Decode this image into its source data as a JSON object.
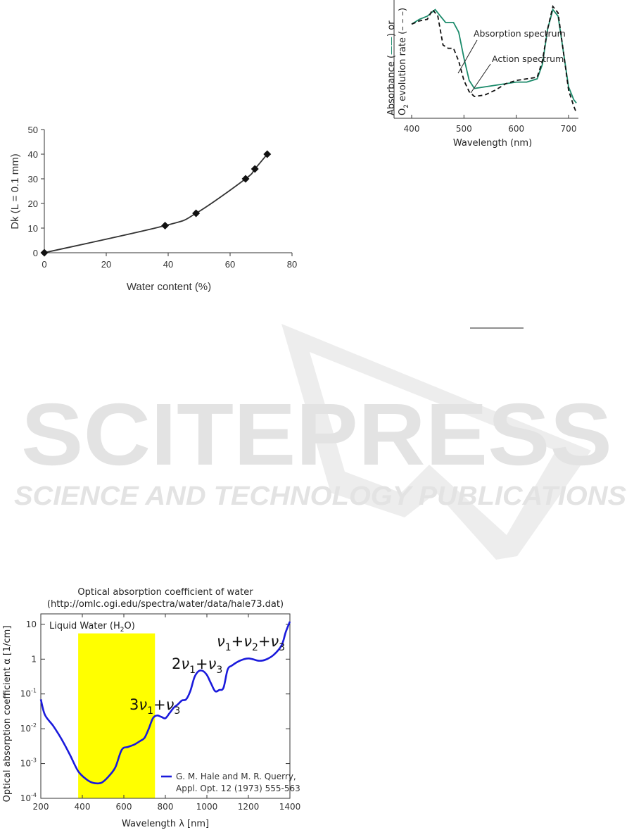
{
  "watermark": {
    "brand": "SCITEPRESS",
    "tagline": "SCIENCE AND TECHNOLOGY PUBLICATIONS",
    "color": "#e3e3e3"
  },
  "chart_data": [
    {
      "type": "line",
      "title": "",
      "xlabel": "Water content (%)",
      "ylabel": "Dk (L = 0.1 mm)",
      "xlim": [
        0,
        80
      ],
      "ylim": [
        0,
        50
      ],
      "xticks": [
        "0",
        "20",
        "40",
        "60",
        "80"
      ],
      "yticks": [
        "0",
        "10",
        "20",
        "30",
        "40",
        "50"
      ],
      "grid": false,
      "series": [
        {
          "color": "#333333",
          "marker": "diamond",
          "x": [
            0,
            39,
            49,
            65,
            68,
            72
          ],
          "y": [
            0,
            11,
            16,
            30,
            34,
            40
          ]
        }
      ]
    },
    {
      "type": "line",
      "title": "",
      "xlabel": "Wavelength (nm)",
      "ylabel_line1_prefix": "Absorbance (",
      "ylabel_line1_suffix": ") or",
      "ylabel_line2_a": "O",
      "ylabel_line2_sub": "2",
      "ylabel_line2_b": " evolution rate (",
      "ylabel_line2_suffix": ")",
      "xlim": [
        400,
        720
      ],
      "xticks": [
        "400",
        "500",
        "600",
        "700"
      ],
      "grid": false,
      "annotations": [
        "Absorption spectrum",
        "Action spectrum"
      ],
      "series": [
        {
          "name": "Absorption spectrum",
          "color": "#1a8a6a",
          "style": "solid",
          "x": [
            400,
            415,
            430,
            445,
            455,
            465,
            480,
            490,
            500,
            510,
            520,
            540,
            560,
            580,
            600,
            620,
            640,
            650,
            660,
            670,
            680,
            690,
            700,
            710,
            715
          ],
          "y": [
            0.55,
            0.58,
            0.6,
            0.64,
            0.6,
            0.56,
            0.56,
            0.5,
            0.34,
            0.2,
            0.15,
            0.16,
            0.17,
            0.18,
            0.19,
            0.19,
            0.21,
            0.3,
            0.52,
            0.64,
            0.6,
            0.38,
            0.16,
            0.08,
            0.06
          ]
        },
        {
          "name": "Action spectrum",
          "color": "#111111",
          "style": "dashed",
          "x": [
            400,
            415,
            430,
            440,
            450,
            460,
            470,
            480,
            490,
            500,
            510,
            520,
            540,
            560,
            580,
            600,
            620,
            640,
            650,
            660,
            670,
            680,
            690,
            700,
            710,
            715
          ],
          "y": [
            0.55,
            0.57,
            0.58,
            0.64,
            0.6,
            0.42,
            0.4,
            0.4,
            0.32,
            0.2,
            0.13,
            0.1,
            0.11,
            0.14,
            0.18,
            0.2,
            0.21,
            0.22,
            0.32,
            0.52,
            0.66,
            0.62,
            0.38,
            0.14,
            0.04,
            0.0
          ]
        }
      ]
    },
    {
      "type": "line",
      "title": "Optical absorption coefficient of water",
      "subtitle": "(http://omlc.ogi.edu/spectra/water/data/hale73.dat)",
      "xlabel": "Wavelength λ [nm]",
      "ylabel": "Optical absorption coefficient α [1/cm]",
      "scale_y": "log",
      "xlim": [
        200,
        1400
      ],
      "ylim": [
        0.0001,
        20
      ],
      "xticks": [
        "200",
        "400",
        "600",
        "800",
        "1000",
        "1200",
        "1400"
      ],
      "yticks": [
        {
          "v": 0.0001,
          "base": "10",
          "exp": "-4"
        },
        {
          "v": 0.001,
          "base": "10",
          "exp": "-3"
        },
        {
          "v": 0.01,
          "base": "10",
          "exp": "-2"
        },
        {
          "v": 0.1,
          "base": "10",
          "exp": "-1"
        },
        {
          "v": 1,
          "base": "1",
          "exp": ""
        },
        {
          "v": 10,
          "base": "10",
          "exp": ""
        }
      ],
      "grid": false,
      "inset_label": {
        "a": "Liquid Water (H",
        "sub": "2",
        "b": "O)"
      },
      "shaded_band": {
        "x": [
          380,
          750
        ],
        "y_top": 5.5,
        "color": "#ffff00"
      },
      "annotations": [
        {
          "coef": "3",
          "sym": "ν",
          "sub": "1",
          "plus": "+",
          "sym2": "ν",
          "sub2": "3"
        },
        {
          "coef": "2",
          "sym": "ν",
          "sub": "1",
          "plus": "+",
          "sym2": "ν",
          "sub2": "3"
        },
        {
          "terms": [
            "1",
            "2",
            "3"
          ],
          "sym": "ν"
        }
      ],
      "legend": {
        "line1": "G. M. Hale and M. R. Querry,",
        "line2": "Appl. Opt. 12 (1973) 555-563",
        "position": "bottom-right"
      },
      "series": [
        {
          "color": "#1a1adc",
          "x": [
            200,
            220,
            260,
            300,
            340,
            380,
            420,
            450,
            480,
            500,
            530,
            560,
            590,
            620,
            650,
            680,
            700,
            720,
            740,
            760,
            780,
            800,
            820,
            840,
            860,
            880,
            900,
            920,
            940,
            960,
            980,
            1000,
            1020,
            1040,
            1060,
            1080,
            1100,
            1120,
            1150,
            1180,
            1200,
            1220,
            1250,
            1280,
            1320,
            1360,
            1380,
            1400
          ],
          "y": [
            0.07,
            0.025,
            0.012,
            0.005,
            0.0018,
            0.0006,
            0.00035,
            0.00028,
            0.00027,
            0.0003,
            0.00045,
            0.0008,
            0.0025,
            0.003,
            0.0035,
            0.0045,
            0.0055,
            0.01,
            0.02,
            0.024,
            0.022,
            0.02,
            0.028,
            0.04,
            0.05,
            0.065,
            0.07,
            0.12,
            0.3,
            0.45,
            0.46,
            0.35,
            0.2,
            0.12,
            0.13,
            0.15,
            0.5,
            0.65,
            0.85,
            1.0,
            1.05,
            1.0,
            0.9,
            0.95,
            1.3,
            2.5,
            6.0,
            12.0
          ]
        }
      ]
    }
  ]
}
